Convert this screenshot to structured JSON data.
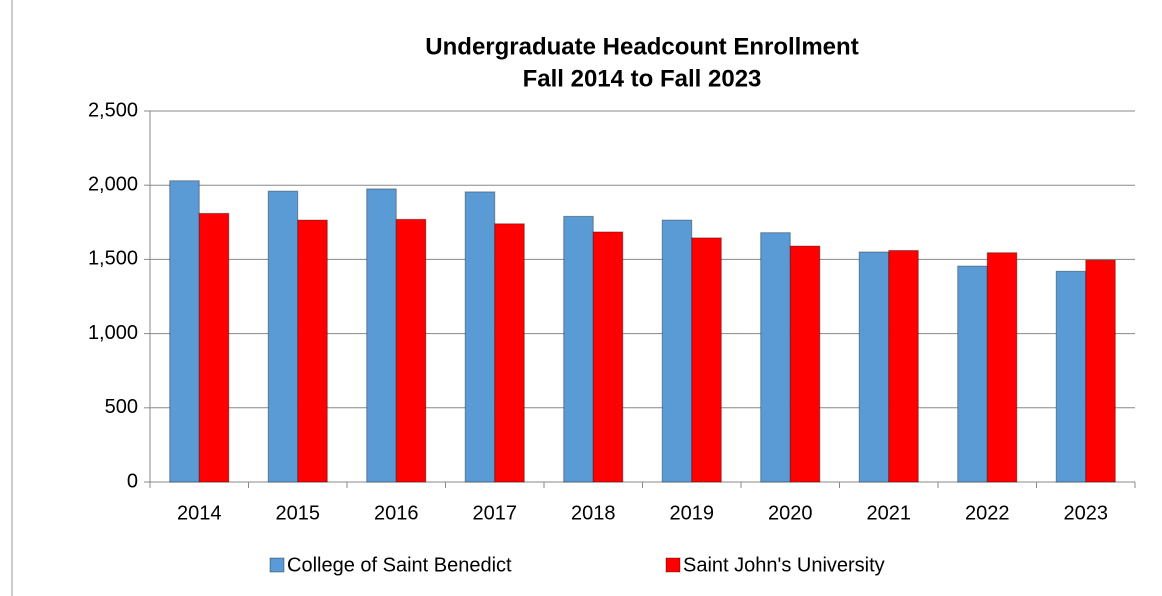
{
  "chart_data": {
    "type": "bar",
    "title": "Undergraduate Headcount Enrollment",
    "subtitle": "Fall 2014 to Fall 2023",
    "categories": [
      "2014",
      "2015",
      "2016",
      "2017",
      "2018",
      "2019",
      "2020",
      "2021",
      "2022",
      "2023"
    ],
    "series": [
      {
        "name": "College of Saint Benedict",
        "color": "#5b9bd5",
        "values": [
          2030,
          1960,
          1975,
          1955,
          1790,
          1765,
          1680,
          1550,
          1455,
          1420
        ]
      },
      {
        "name": "Saint John's University",
        "color": "#ff0000",
        "values": [
          1810,
          1765,
          1770,
          1740,
          1685,
          1645,
          1590,
          1560,
          1545,
          1495
        ]
      }
    ],
    "ylim": [
      0,
      2500
    ],
    "yticks": [
      0,
      500,
      {
        "value": 1000,
        "label": "1,000"
      },
      {
        "value": 1500,
        "label": "1,500"
      },
      {
        "value": 2000,
        "label": "2,000"
      },
      {
        "value": 2500,
        "label": "2,500"
      }
    ],
    "grid": true,
    "legend": "bottom"
  }
}
